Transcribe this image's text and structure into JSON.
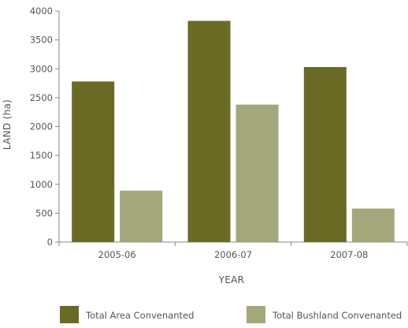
{
  "chart_data": {
    "type": "bar",
    "title": "",
    "xlabel": "YEAR",
    "ylabel": "LAND (ha)",
    "categories": [
      "2005-06",
      "2006-07",
      "2007-08"
    ],
    "series": [
      {
        "name": "Total Area Convenanted",
        "color": "#6a6a25",
        "values": [
          2780,
          3830,
          3030
        ]
      },
      {
        "name": "Total Bushland Convenanted",
        "color": "#a4a77b",
        "values": [
          890,
          2380,
          580
        ]
      }
    ],
    "ylim": [
      0,
      4000
    ],
    "yticks": [
      0,
      500,
      1000,
      1500,
      2000,
      2500,
      3000,
      3500,
      4000
    ],
    "ytick_labels": [
      "0",
      "500",
      "1000",
      "1500",
      "2000",
      "2500",
      "3000",
      "3500",
      "4000"
    ],
    "grid": false,
    "legend_position": "bottom"
  }
}
